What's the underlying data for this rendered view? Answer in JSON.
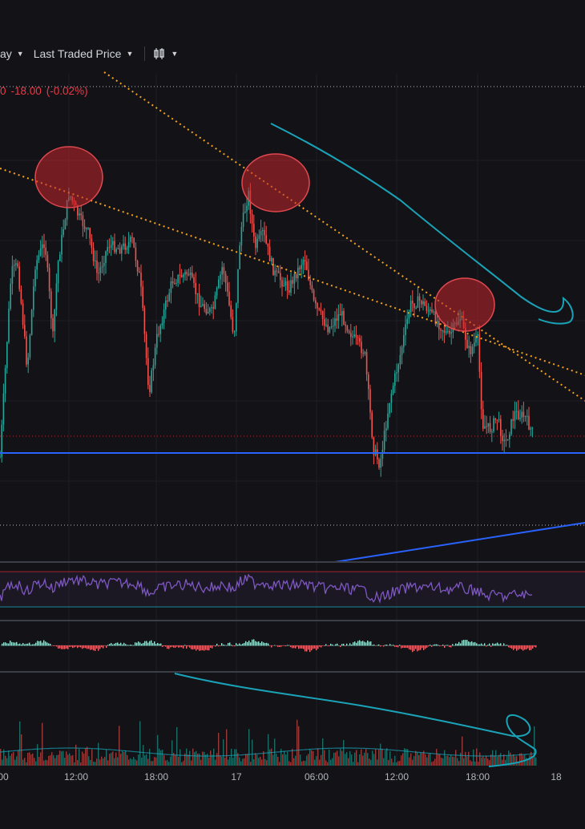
{
  "toolbar": {
    "interval_label": "ay",
    "price_type_label": "Last Traded Price",
    "chart_style_icon": "candles-icon"
  },
  "price_line": {
    "value_fragment": "0",
    "change": "-18.00",
    "change_pct": "(-0.02%)",
    "color": "#f23645"
  },
  "x_axis": {
    "labels": [
      "00",
      "12:00",
      "18:00",
      "17",
      "06:00",
      "12:00",
      "18:00",
      "18"
    ]
  },
  "colors": {
    "background": "#131317",
    "up": "#26a69a",
    "down": "#ef5350",
    "support_line": "#2962ff",
    "trendline": "#f7a21b",
    "drawing": "#1aa3b8",
    "rsi": "#7e57c2",
    "highlight_circle": "#c2262e"
  }
}
